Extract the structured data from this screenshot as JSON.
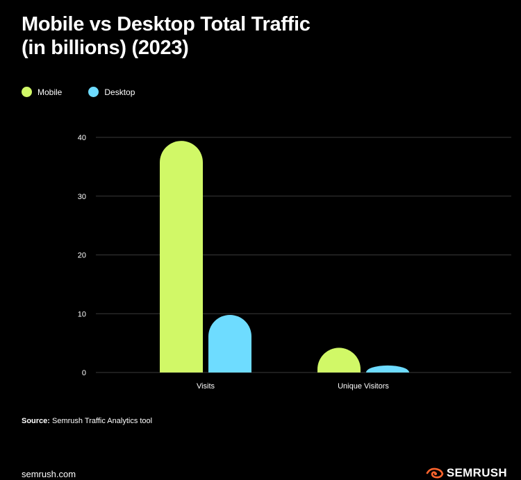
{
  "chart_data": {
    "type": "bar",
    "title_lines": [
      "Mobile vs Desktop Total Traffic",
      "(in billions) (2023)"
    ],
    "categories": [
      "Visits",
      "Unique Visitors"
    ],
    "series": [
      {
        "name": "Mobile",
        "color": "#D1F867",
        "values": [
          39.4,
          4.2
        ]
      },
      {
        "name": "Desktop",
        "color": "#6EDCFF",
        "values": [
          9.8,
          1.2
        ]
      }
    ],
    "yticks": [
      0,
      10,
      20,
      30,
      40
    ],
    "ylim": [
      0,
      40
    ],
    "grid": true,
    "legend_position": "top-left"
  },
  "source": {
    "label": "Source:",
    "text": " Semrush Traffic Analytics tool"
  },
  "footer": {
    "site": "semrush.com",
    "brand": "SEMRUSH",
    "brand_icon": "semrush-fire-icon",
    "brand_color": "#FF642D"
  }
}
